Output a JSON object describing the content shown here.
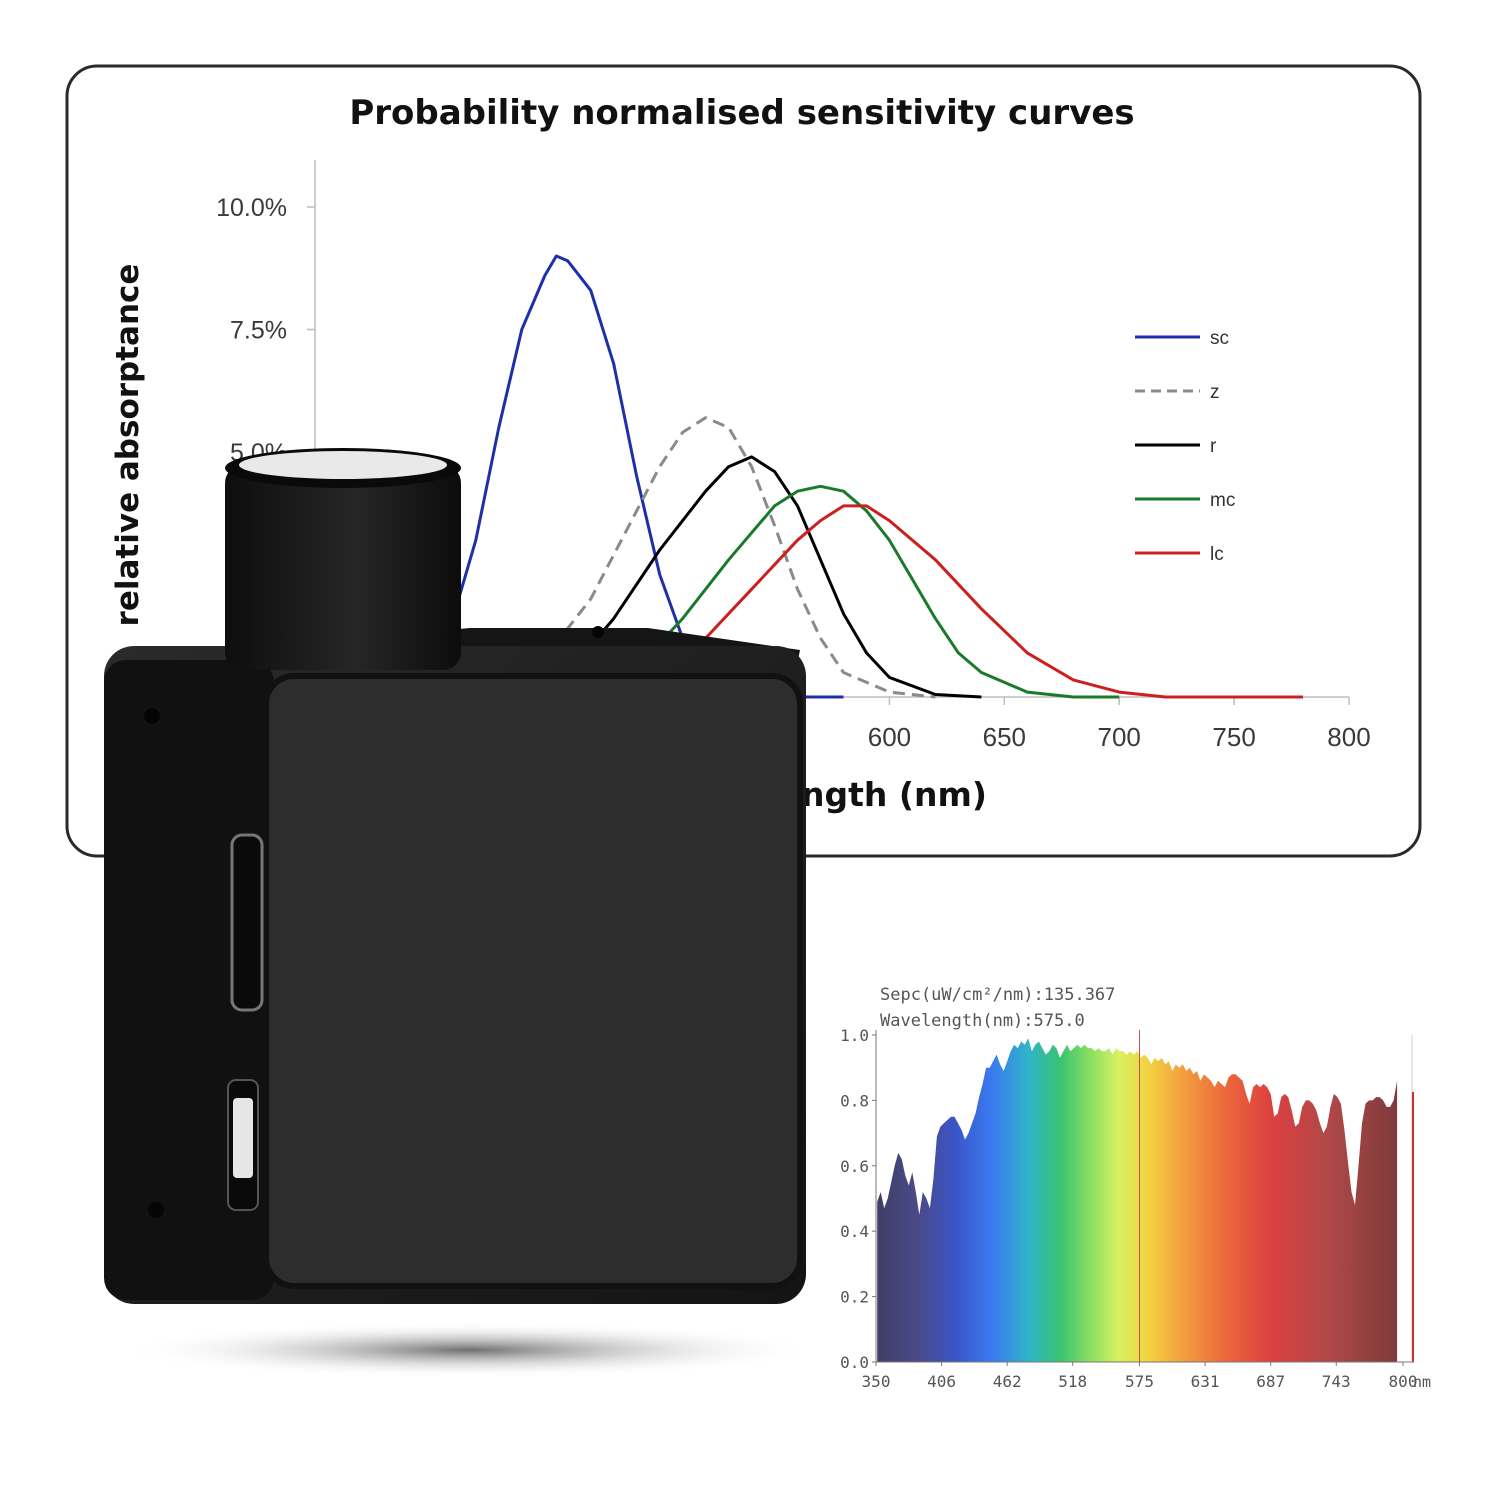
{
  "chart_data": [
    {
      "type": "line",
      "title": "Probability normalised sensitivity curves",
      "xlabel": "ngth (nm)",
      "ylabel": "relative absorptance",
      "xlim": [
        350,
        800
      ],
      "ylim": [
        0,
        10
      ],
      "x_ticks": [
        "600",
        "650",
        "700",
        "750",
        "800"
      ],
      "y_ticks": [
        "10.0%",
        "7.5%",
        "5.0%"
      ],
      "legend_position": "right",
      "series": [
        {
          "name": "sc",
          "color": "#1f2fa8",
          "dash": "solid",
          "x": [
            400,
            420,
            430,
            440,
            450,
            455,
            460,
            470,
            480,
            490,
            500,
            510,
            520,
            530,
            540,
            560,
            580
          ],
          "y": [
            0.0,
            3.2,
            5.5,
            7.5,
            8.6,
            9.0,
            8.9,
            8.3,
            6.8,
            4.5,
            2.5,
            1.2,
            0.5,
            0.2,
            0.1,
            0.0,
            0.0
          ]
        },
        {
          "name": "z",
          "color": "#8a8a8a",
          "dash": "dashed",
          "x": [
            430,
            450,
            470,
            490,
            500,
            510,
            520,
            530,
            540,
            550,
            560,
            570,
            580,
            600,
            620
          ],
          "y": [
            0.0,
            0.8,
            2.0,
            3.8,
            4.7,
            5.4,
            5.7,
            5.5,
            4.7,
            3.5,
            2.2,
            1.2,
            0.5,
            0.1,
            0.0
          ]
        },
        {
          "name": "r",
          "color": "#000000",
          "dash": "solid",
          "x": [
            440,
            460,
            480,
            500,
            520,
            530,
            540,
            550,
            560,
            570,
            580,
            590,
            600,
            620,
            640
          ],
          "y": [
            0.0,
            0.5,
            1.6,
            3.0,
            4.2,
            4.7,
            4.9,
            4.6,
            3.9,
            2.8,
            1.7,
            0.9,
            0.4,
            0.05,
            0.0
          ]
        },
        {
          "name": "mc",
          "color": "#1a7a2a",
          "dash": "solid",
          "x": [
            470,
            490,
            510,
            530,
            550,
            560,
            570,
            580,
            590,
            600,
            610,
            620,
            630,
            640,
            660,
            680,
            700
          ],
          "y": [
            0.0,
            0.6,
            1.6,
            2.8,
            3.9,
            4.2,
            4.3,
            4.2,
            3.8,
            3.2,
            2.4,
            1.6,
            0.9,
            0.5,
            0.1,
            0.0,
            0.0
          ]
        },
        {
          "name": "lc",
          "color": "#cc2020",
          "dash": "solid",
          "x": [
            480,
            500,
            520,
            540,
            560,
            570,
            580,
            590,
            600,
            620,
            640,
            660,
            680,
            700,
            720,
            760,
            780
          ],
          "y": [
            0.0,
            0.4,
            1.2,
            2.2,
            3.2,
            3.6,
            3.9,
            3.9,
            3.6,
            2.8,
            1.8,
            0.9,
            0.35,
            0.1,
            0.0,
            0.0,
            0.0
          ]
        }
      ]
    },
    {
      "type": "area",
      "annotation_line1": "Sepc(uW/cm²/nm):135.367",
      "annotation_line2": "Wavelength(nm):575.0",
      "x_unit": "nm",
      "xlim": [
        350,
        800
      ],
      "ylim": [
        0,
        1.0
      ],
      "x_ticks": [
        "350",
        "406",
        "462",
        "518",
        "575",
        "631",
        "687",
        "743",
        "800"
      ],
      "y_ticks": [
        "1.0",
        "0.8",
        "0.6",
        "0.4",
        "0.2",
        "0.0"
      ],
      "cursor_x": 575,
      "x": [
        351,
        354,
        357,
        360,
        363,
        366,
        369,
        372,
        375,
        378,
        381,
        384,
        387,
        390,
        393,
        396,
        399,
        402,
        405,
        408,
        411,
        414,
        417,
        420,
        423,
        426,
        429,
        432,
        435,
        438,
        441,
        444,
        447,
        450,
        453,
        456,
        459,
        462,
        465,
        468,
        471,
        474,
        477,
        480,
        483,
        486,
        489,
        492,
        495,
        498,
        501,
        504,
        507,
        510,
        513,
        516,
        519,
        522,
        525,
        528,
        531,
        534,
        537,
        540,
        543,
        546,
        549,
        552,
        555,
        558,
        561,
        564,
        567,
        570,
        573,
        576,
        579,
        582,
        585,
        588,
        591,
        594,
        597,
        600,
        603,
        606,
        609,
        612,
        615,
        618,
        621,
        624,
        627,
        630,
        633,
        636,
        639,
        642,
        645,
        648,
        651,
        654,
        657,
        660,
        663,
        666,
        669,
        672,
        675,
        678,
        681,
        684,
        687,
        690,
        693,
        696,
        699,
        702,
        705,
        708,
        711,
        714,
        717,
        720,
        723,
        726,
        729,
        732,
        735,
        738,
        741,
        744,
        747,
        750,
        753,
        756,
        759,
        762,
        765,
        768,
        771,
        774,
        777,
        780,
        783,
        786,
        789,
        792,
        795
      ],
      "y": [
        0.49,
        0.52,
        0.47,
        0.5,
        0.55,
        0.6,
        0.64,
        0.62,
        0.57,
        0.54,
        0.58,
        0.52,
        0.45,
        0.52,
        0.5,
        0.47,
        0.56,
        0.69,
        0.72,
        0.73,
        0.74,
        0.75,
        0.75,
        0.73,
        0.71,
        0.68,
        0.7,
        0.73,
        0.76,
        0.81,
        0.85,
        0.9,
        0.9,
        0.92,
        0.94,
        0.91,
        0.89,
        0.92,
        0.95,
        0.97,
        0.96,
        0.98,
        0.97,
        0.99,
        0.95,
        0.97,
        0.98,
        0.96,
        0.94,
        0.95,
        0.97,
        0.96,
        0.93,
        0.95,
        0.97,
        0.95,
        0.96,
        0.97,
        0.96,
        0.97,
        0.96,
        0.96,
        0.95,
        0.96,
        0.95,
        0.95,
        0.96,
        0.94,
        0.96,
        0.95,
        0.95,
        0.94,
        0.95,
        0.94,
        0.95,
        0.93,
        0.94,
        0.93,
        0.91,
        0.93,
        0.92,
        0.93,
        0.91,
        0.92,
        0.89,
        0.91,
        0.9,
        0.91,
        0.89,
        0.9,
        0.88,
        0.89,
        0.86,
        0.88,
        0.87,
        0.86,
        0.84,
        0.86,
        0.85,
        0.84,
        0.87,
        0.88,
        0.88,
        0.87,
        0.86,
        0.82,
        0.79,
        0.84,
        0.85,
        0.84,
        0.85,
        0.84,
        0.82,
        0.75,
        0.76,
        0.81,
        0.82,
        0.81,
        0.77,
        0.72,
        0.73,
        0.78,
        0.8,
        0.8,
        0.79,
        0.77,
        0.73,
        0.7,
        0.72,
        0.78,
        0.82,
        0.81,
        0.79,
        0.71,
        0.61,
        0.52,
        0.48,
        0.6,
        0.73,
        0.79,
        0.8,
        0.8,
        0.81,
        0.81,
        0.8,
        0.78,
        0.78,
        0.8,
        0.86
      ]
    }
  ],
  "colors": {
    "device_body": "#1e1e1e",
    "device_face": "#2c2c2c",
    "spectrum_cursor": "#c45050"
  }
}
